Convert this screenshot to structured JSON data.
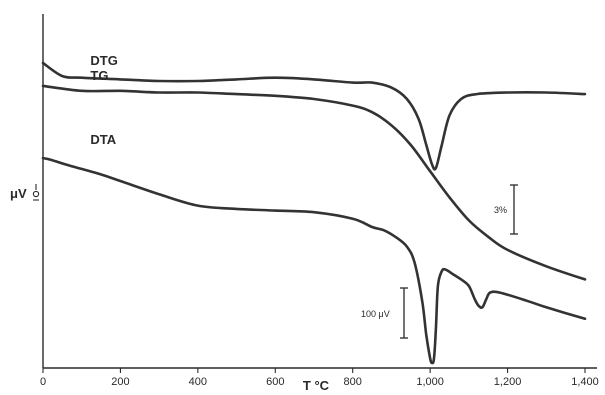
{
  "chart_data": {
    "type": "line",
    "title": "",
    "xlabel": "T °C",
    "ylabel": "μV",
    "y_units_glyph": "μ",
    "xlim": [
      0,
      1400
    ],
    "x_ticks": [
      0,
      200,
      400,
      600,
      800,
      1000,
      1200,
      1400
    ],
    "x_tick_labels": [
      "0",
      "200",
      "400",
      "600",
      "800",
      "1,000",
      "1,200",
      "1,400"
    ],
    "y_ticks_shown": false,
    "grid": false,
    "series": [
      {
        "name": "DTG",
        "x": [
          0,
          50,
          100,
          200,
          300,
          400,
          500,
          600,
          700,
          800,
          850,
          900,
          940,
          970,
          990,
          1005,
          1015,
          1030,
          1050,
          1080,
          1120,
          1200,
          1300,
          1400
        ],
        "y": [
          93,
          89,
          88.5,
          88,
          87.5,
          87.5,
          88,
          88.5,
          88,
          87,
          87,
          85.5,
          82,
          76,
          68,
          62,
          61,
          68,
          77,
          82,
          83.5,
          84,
          84,
          83.5
        ]
      },
      {
        "name": "TG",
        "x": [
          0,
          100,
          200,
          300,
          400,
          500,
          600,
          700,
          800,
          850,
          900,
          950,
          1000,
          1050,
          1100,
          1150,
          1200,
          1300,
          1400
        ],
        "y": [
          86,
          84.5,
          84.5,
          84,
          84,
          83.5,
          83,
          82,
          80,
          78,
          74,
          68,
          60,
          52,
          45,
          40,
          36,
          31,
          27
        ]
      },
      {
        "name": "DTA",
        "x": [
          0,
          20,
          60,
          150,
          200,
          300,
          400,
          500,
          600,
          700,
          800,
          850,
          880,
          910,
          940,
          960,
          980,
          990,
          1000,
          1005,
          1010,
          1015,
          1020,
          1030,
          1040,
          1060,
          1080,
          1100,
          1115,
          1125,
          1135,
          1145,
          1155,
          1180,
          1250,
          1300,
          1400
        ],
        "y": [
          64,
          63.5,
          62,
          59,
          57,
          53,
          49.5,
          48.5,
          48,
          47.5,
          45.5,
          43,
          42,
          40,
          37,
          32,
          20,
          10,
          3,
          1.5,
          3,
          12,
          25,
          29.5,
          30,
          28.5,
          27,
          25,
          21,
          19,
          18.5,
          21,
          23,
          23,
          20.5,
          18.5,
          15
        ]
      }
    ],
    "annotations": [
      {
        "text": "3%",
        "kind": "scale-bar",
        "series": "TG"
      },
      {
        "text": "100 μV",
        "kind": "scale-bar",
        "series": "DTA"
      }
    ]
  }
}
